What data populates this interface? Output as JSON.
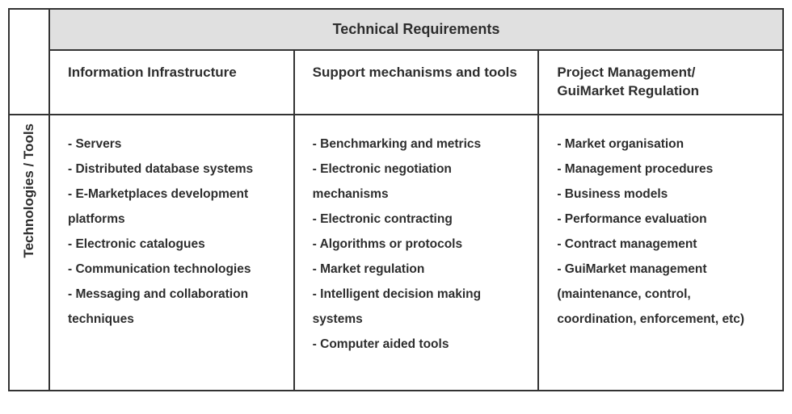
{
  "header": {
    "top": "Technical Requirements",
    "columns": [
      "Information Infrastructure",
      "Support mechanisms and tools",
      "Project Management/ GuiMarket Regulation"
    ],
    "side": "Technologies / Tools"
  },
  "columns": [
    {
      "items": [
        "- Servers",
        "- Distributed database systems",
        "- E-Marketplaces development platforms",
        "- Electronic catalogues",
        "- Communication technologies",
        "- Messaging and collaboration techniques"
      ]
    },
    {
      "items": [
        "- Benchmarking and metrics",
        "- Electronic negotiation mechanisms",
        "- Electronic contracting",
        "- Algorithms or protocols",
        "- Market regulation",
        "- Intelligent decision making systems",
        "- Computer aided tools"
      ]
    },
    {
      "items": [
        "- Market organisation",
        "- Management procedures",
        "- Business models",
        "- Performance evaluation",
        "- Contract management",
        "- GuiMarket management (maintenance, control, coordination, enforcement, etc)"
      ]
    }
  ],
  "style": {
    "border_color": "#333333",
    "header_bg": "#e0e0e0",
    "text_color": "#2d2d2d",
    "font_family": "Arial, Helvetica, sans-serif"
  }
}
